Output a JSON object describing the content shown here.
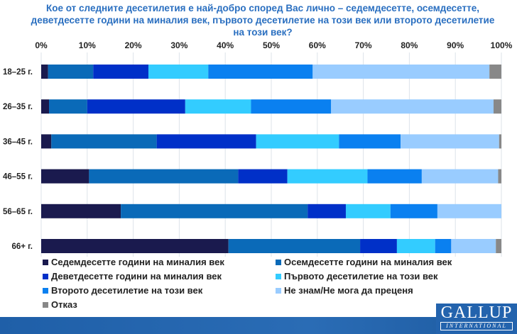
{
  "chart_data": {
    "type": "bar",
    "orientation": "horizontal-stacked-100",
    "title": "Кое от следните десетилетия е най-добро според Вас лично – седемдесетте, осемдесетте, деветдесетте години на миналия век, първото десетилетие на този век или второто десетилетие на този век?",
    "categories": [
      "18–25 г.",
      "26–35 г.",
      "36–45 г.",
      "46–55 г.",
      "56–65 г.",
      "66+ г."
    ],
    "x_ticks": [
      "0%",
      "10%",
      "20%",
      "30%",
      "40%",
      "50%",
      "60%",
      "70%",
      "80%",
      "90%",
      "100%"
    ],
    "xlim": [
      0,
      100
    ],
    "grid": true,
    "legend_position": "bottom",
    "series": [
      {
        "name": "Седемдесетте години на миналия век",
        "color": "#1a1a4e",
        "values": [
          1.5,
          1.7,
          2.2,
          10.4,
          17.3,
          40.7
        ]
      },
      {
        "name": "Осемдесетте години на миналия век",
        "color": "#0a6ab8",
        "values": [
          9.8,
          8.3,
          22.9,
          32.4,
          40.6,
          28.6
        ]
      },
      {
        "name": "Деветдесетте години на миналия век",
        "color": "#0030c8",
        "values": [
          12.0,
          21.3,
          21.6,
          10.7,
          8.3,
          8.0
        ]
      },
      {
        "name": "Първото десетилетие на този век",
        "color": "#33ccff",
        "values": [
          13.0,
          14.3,
          18.0,
          17.4,
          9.7,
          8.3
        ]
      },
      {
        "name": "Второто десетилетие на този век",
        "color": "#0a80f0",
        "values": [
          22.7,
          17.4,
          13.4,
          11.8,
          10.2,
          3.5
        ]
      },
      {
        "name": "Не знам/Не мога да преценя",
        "color": "#99ccff",
        "values": [
          38.4,
          35.3,
          21.4,
          16.6,
          13.9,
          9.7
        ]
      },
      {
        "name": "Отказ",
        "color": "#888888",
        "values": [
          2.6,
          1.7,
          0.5,
          0.7,
          0.0,
          1.2
        ]
      }
    ]
  },
  "logo": {
    "line1": "GALLUP",
    "line2": "INTERNATIONAL"
  }
}
